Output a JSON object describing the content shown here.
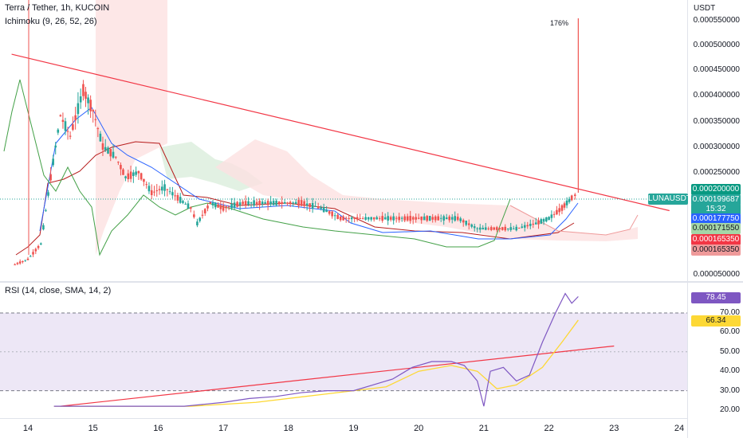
{
  "legend": {
    "symbol": "Terra / Tether, 1h, KUCOIN",
    "ichimoku": "Ichimoku (9, 26, 52, 26)",
    "rsi": "RSI (14, close, SMA, 14, 2)"
  },
  "annotation": {
    "spike_pct": "176%"
  },
  "price_axis": {
    "currency": "USDT",
    "ticks": [
      "0.000550000",
      "0.000500000",
      "0.000450000",
      "0.000400000",
      "0.000350000",
      "0.000300000",
      "0.000250000",
      "0.000050000"
    ]
  },
  "price_tags": [
    {
      "label": "0.000200000",
      "bg": "#089981",
      "fg": "#ffffff"
    },
    {
      "label": "0.000199687",
      "bg": "#26a69a",
      "fg": "#ffffff"
    },
    {
      "label": "15:32",
      "bg": "#26a69a",
      "fg": "#ffffff"
    },
    {
      "label": "0.000177750",
      "bg": "#2962ff",
      "fg": "#ffffff"
    },
    {
      "label": "0.000171550",
      "bg": "#a5d6a7",
      "fg": "#131722"
    },
    {
      "label": "0.000165350",
      "bg": "#f23645",
      "fg": "#ffffff"
    },
    {
      "label": "0.000165350",
      "bg": "#ef9a9a",
      "fg": "#131722"
    }
  ],
  "symbol_tag": "LUNAUSDT",
  "rsi_axis": {
    "current": "78.45",
    "ma": "66.34",
    "ticks": [
      "70.00",
      "60.00",
      "50.00",
      "40.00",
      "30.00",
      "20.00"
    ]
  },
  "time_axis": [
    "14",
    "15",
    "16",
    "17",
    "18",
    "19",
    "20",
    "21",
    "22",
    "23",
    "24"
  ],
  "colors": {
    "up": "#26a69a",
    "down": "#ef5350",
    "trendline": "#f23645",
    "tenkan": "#2962ff",
    "kijun": "#b71c1c",
    "chikou": "#43a047",
    "rsi_line": "#7e57c2",
    "rsi_ma": "#fdd835",
    "rsi_band": "#ede7f6"
  },
  "chart_data": {
    "type": "candlestick",
    "x_unit": "day",
    "ylim": [
      5e-05,
      0.00055
    ],
    "close_path": [
      [
        13.8,
        7e-05
      ],
      [
        14.0,
        8e-05
      ],
      [
        14.2,
        0.00011
      ],
      [
        14.35,
        0.00024
      ],
      [
        14.5,
        0.00036
      ],
      [
        14.65,
        0.00032
      ],
      [
        14.85,
        0.00041
      ],
      [
        15.0,
        0.00037
      ],
      [
        15.15,
        0.0003
      ],
      [
        15.35,
        0.00028
      ],
      [
        15.5,
        0.00024
      ],
      [
        15.7,
        0.00025
      ],
      [
        15.9,
        0.00021
      ],
      [
        16.1,
        0.00022
      ],
      [
        16.3,
        0.0002
      ],
      [
        16.5,
        0.00018
      ],
      [
        16.6,
        0.00015
      ],
      [
        16.8,
        0.00019
      ],
      [
        17.0,
        0.00018
      ],
      [
        17.3,
        0.00019
      ],
      [
        17.6,
        0.00019
      ],
      [
        17.9,
        0.00019
      ],
      [
        18.2,
        0.00019
      ],
      [
        18.5,
        0.00018
      ],
      [
        18.8,
        0.00016
      ],
      [
        19.1,
        0.00016
      ],
      [
        19.4,
        0.00016
      ],
      [
        19.7,
        0.00016
      ],
      [
        20.0,
        0.00016
      ],
      [
        20.3,
        0.00016
      ],
      [
        20.6,
        0.00016
      ],
      [
        20.9,
        0.00014
      ],
      [
        21.2,
        0.00014
      ],
      [
        21.5,
        0.00014
      ],
      [
        21.8,
        0.00015
      ],
      [
        22.0,
        0.00016
      ],
      [
        22.2,
        0.00018
      ],
      [
        22.35,
        0.0002
      ],
      [
        22.45,
        0.00021
      ]
    ],
    "spike": {
      "x": 22.45,
      "high": 0.00055
    },
    "trendline": {
      "from": [
        13.75,
        0.00048
      ],
      "to": [
        23.85,
        0.000175
      ]
    },
    "rsi": {
      "ylim": [
        15,
        85
      ],
      "bands": [
        30,
        70
      ],
      "values": [
        [
          14.4,
          22
        ],
        [
          15.0,
          22
        ],
        [
          16.0,
          22
        ],
        [
          16.4,
          22
        ],
        [
          16.7,
          23
        ],
        [
          17.0,
          24
        ],
        [
          17.4,
          26
        ],
        [
          17.8,
          27
        ],
        [
          18.2,
          29
        ],
        [
          18.6,
          30
        ],
        [
          19.0,
          30
        ],
        [
          19.3,
          33
        ],
        [
          19.6,
          36
        ],
        [
          19.9,
          42
        ],
        [
          20.2,
          45
        ],
        [
          20.5,
          45
        ],
        [
          20.7,
          43
        ],
        [
          20.9,
          35
        ],
        [
          21.0,
          22
        ],
        [
          21.1,
          40
        ],
        [
          21.3,
          42
        ],
        [
          21.5,
          35
        ],
        [
          21.7,
          38
        ],
        [
          21.9,
          55
        ],
        [
          22.1,
          70
        ],
        [
          22.25,
          80
        ],
        [
          22.35,
          75
        ],
        [
          22.45,
          78.45
        ]
      ],
      "ma": [
        [
          14.4,
          22
        ],
        [
          16.5,
          22
        ],
        [
          17.5,
          24
        ],
        [
          18.5,
          28
        ],
        [
          19.5,
          32
        ],
        [
          20.0,
          40
        ],
        [
          20.5,
          43
        ],
        [
          20.9,
          40
        ],
        [
          21.2,
          31
        ],
        [
          21.5,
          33
        ],
        [
          21.9,
          42
        ],
        [
          22.2,
          55
        ],
        [
          22.45,
          66.34
        ]
      ],
      "trendline": {
        "from": [
          14.5,
          22
        ],
        "to": [
          23.0,
          53
        ]
      }
    }
  }
}
